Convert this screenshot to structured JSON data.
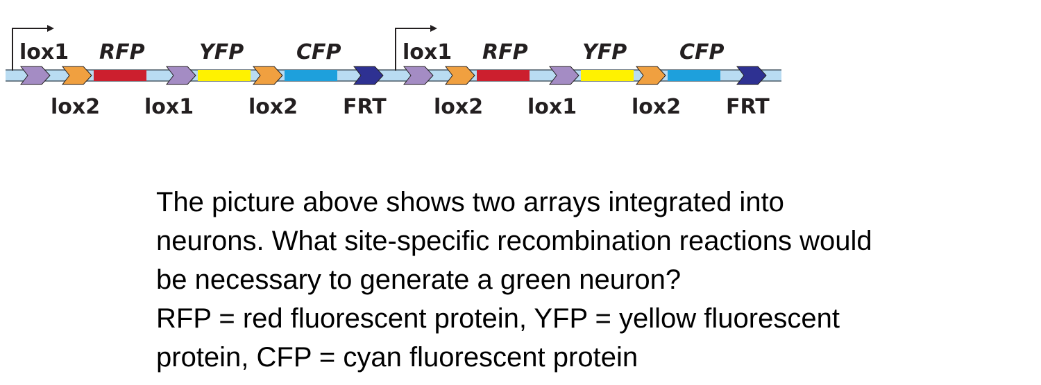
{
  "diagram": {
    "arrays": [
      {
        "top_labels": [
          "lox1",
          "RFP",
          "YFP",
          "CFP"
        ],
        "bottom_labels": [
          "lox2",
          "lox1",
          "lox2",
          "FRT"
        ],
        "elements": [
          {
            "type": "site",
            "name": "lox1",
            "color": "#a48cc4"
          },
          {
            "type": "site",
            "name": "lox2",
            "color": "#f0a040"
          },
          {
            "type": "gene",
            "name": "RFP",
            "color": "#cc1f2e"
          },
          {
            "type": "site",
            "name": "lox1",
            "color": "#a48cc4"
          },
          {
            "type": "gene",
            "name": "YFP",
            "color": "#fff200"
          },
          {
            "type": "site",
            "name": "lox2",
            "color": "#f0a040"
          },
          {
            "type": "gene",
            "name": "CFP",
            "color": "#1ea0dc"
          },
          {
            "type": "site",
            "name": "FRT",
            "color": "#2e3192"
          }
        ]
      },
      {
        "top_labels": [
          "lox1",
          "RFP",
          "YFP",
          "CFP"
        ],
        "bottom_labels": [
          "lox2",
          "lox1",
          "lox2",
          "FRT"
        ],
        "elements": [
          {
            "type": "site",
            "name": "lox1",
            "color": "#a48cc4"
          },
          {
            "type": "site",
            "name": "lox2",
            "color": "#f0a040"
          },
          {
            "type": "gene",
            "name": "RFP",
            "color": "#cc1f2e"
          },
          {
            "type": "site",
            "name": "lox1",
            "color": "#a48cc4"
          },
          {
            "type": "gene",
            "name": "YFP",
            "color": "#fff200"
          },
          {
            "type": "site",
            "name": "lox2",
            "color": "#f0a040"
          },
          {
            "type": "gene",
            "name": "CFP",
            "color": "#1ea0dc"
          },
          {
            "type": "site",
            "name": "FRT",
            "color": "#2e3192"
          }
        ]
      }
    ],
    "dna_color": "#b9dcf2"
  },
  "question": {
    "line1": "The picture above shows two arrays integrated into",
    "line2": "neurons. What site-specific recombination reactions would",
    "line3": "be necessary to generate a green neuron?",
    "line4": "RFP = red fluorescent protein, YFP = yellow fluorescent",
    "line5": "protein, CFP = cyan fluorescent protein"
  }
}
